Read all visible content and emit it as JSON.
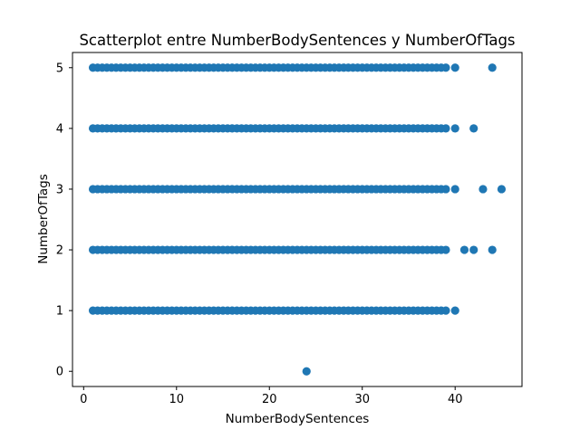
{
  "chart_data": {
    "type": "scatter",
    "title": "Scatterplot entre NumberBodySentences y NumberOfTags",
    "xlabel": "NumberBodySentences",
    "ylabel": "NumberOfTags",
    "xlim": [
      -1.2,
      47.2
    ],
    "ylim": [
      -0.25,
      5.25
    ],
    "xticks": [
      0,
      10,
      20,
      30,
      40
    ],
    "yticks": [
      0,
      1,
      2,
      3,
      4,
      5
    ],
    "grid": false,
    "marker_color": "#1f77b4",
    "rows": [
      {
        "y": 5,
        "x": [
          1,
          1.5,
          2,
          2.5,
          3,
          3.5,
          4,
          4.5,
          5,
          5.5,
          6,
          6.5,
          7,
          7.5,
          8,
          8.5,
          9,
          9.5,
          10,
          10.5,
          11,
          11.5,
          12,
          12.5,
          13,
          13.5,
          14,
          14.5,
          15,
          15.5,
          16,
          16.5,
          17,
          17.5,
          18,
          18.5,
          19,
          19.5,
          20,
          20.5,
          21,
          21.5,
          22,
          22.5,
          23,
          23.5,
          24,
          24.5,
          25,
          25.5,
          26,
          26.5,
          27,
          27.5,
          28,
          28.5,
          29,
          29.5,
          30,
          30.5,
          31,
          31.5,
          32,
          32.5,
          33,
          33.5,
          34,
          34.5,
          35,
          35.5,
          36,
          36.5,
          37,
          37.5,
          38,
          38.5,
          39,
          40,
          44
        ]
      },
      {
        "y": 4,
        "x": [
          1,
          1.5,
          2,
          2.5,
          3,
          3.5,
          4,
          4.5,
          5,
          5.5,
          6,
          6.5,
          7,
          7.5,
          8,
          8.5,
          9,
          9.5,
          10,
          10.5,
          11,
          11.5,
          12,
          12.5,
          13,
          13.5,
          14,
          14.5,
          15,
          15.5,
          16,
          16.5,
          17,
          17.5,
          18,
          18.5,
          19,
          19.5,
          20,
          20.5,
          21,
          21.5,
          22,
          22.5,
          23,
          23.5,
          24,
          24.5,
          25,
          25.5,
          26,
          26.5,
          27,
          27.5,
          28,
          28.5,
          29,
          29.5,
          30,
          30.5,
          31,
          31.5,
          32,
          32.5,
          33,
          33.5,
          34,
          34.5,
          35,
          35.5,
          36,
          36.5,
          37,
          37.5,
          38,
          38.5,
          39,
          40,
          42
        ]
      },
      {
        "y": 3,
        "x": [
          1,
          1.5,
          2,
          2.5,
          3,
          3.5,
          4,
          4.5,
          5,
          5.5,
          6,
          6.5,
          7,
          7.5,
          8,
          8.5,
          9,
          9.5,
          10,
          10.5,
          11,
          11.5,
          12,
          12.5,
          13,
          13.5,
          14,
          14.5,
          15,
          15.5,
          16,
          16.5,
          17,
          17.5,
          18,
          18.5,
          19,
          19.5,
          20,
          20.5,
          21,
          21.5,
          22,
          22.5,
          23,
          23.5,
          24,
          24.5,
          25,
          25.5,
          26,
          26.5,
          27,
          27.5,
          28,
          28.5,
          29,
          29.5,
          30,
          30.5,
          31,
          31.5,
          32,
          32.5,
          33,
          33.5,
          34,
          34.5,
          35,
          35.5,
          36,
          36.5,
          37,
          37.5,
          38,
          38.5,
          39,
          40,
          43,
          45
        ]
      },
      {
        "y": 2,
        "x": [
          1,
          1.5,
          2,
          2.5,
          3,
          3.5,
          4,
          4.5,
          5,
          5.5,
          6,
          6.5,
          7,
          7.5,
          8,
          8.5,
          9,
          9.5,
          10,
          10.5,
          11,
          11.5,
          12,
          12.5,
          13,
          13.5,
          14,
          14.5,
          15,
          15.5,
          16,
          16.5,
          17,
          17.5,
          18,
          18.5,
          19,
          19.5,
          20,
          20.5,
          21,
          21.5,
          22,
          22.5,
          23,
          23.5,
          24,
          24.5,
          25,
          25.5,
          26,
          26.5,
          27,
          27.5,
          28,
          28.5,
          29,
          29.5,
          30,
          30.5,
          31,
          31.5,
          32,
          32.5,
          33,
          33.5,
          34,
          34.5,
          35,
          35.5,
          36,
          36.5,
          37,
          37.5,
          38,
          38.5,
          39,
          41,
          42,
          44
        ]
      },
      {
        "y": 1,
        "x": [
          1,
          1.5,
          2,
          2.5,
          3,
          3.5,
          4,
          4.5,
          5,
          5.5,
          6,
          6.5,
          7,
          7.5,
          8,
          8.5,
          9,
          9.5,
          10,
          10.5,
          11,
          11.5,
          12,
          12.5,
          13,
          13.5,
          14,
          14.5,
          15,
          15.5,
          16,
          16.5,
          17,
          17.5,
          18,
          18.5,
          19,
          19.5,
          20,
          20.5,
          21,
          21.5,
          22,
          22.5,
          23,
          23.5,
          24,
          24.5,
          25,
          25.5,
          26,
          26.5,
          27,
          27.5,
          28,
          28.5,
          29,
          29.5,
          30,
          30.5,
          31,
          31.5,
          32,
          32.5,
          33,
          33.5,
          34,
          34.5,
          35,
          35.5,
          36,
          36.5,
          37,
          37.5,
          38,
          38.5,
          39,
          40
        ]
      },
      {
        "y": 0,
        "x": [
          24
        ]
      }
    ]
  }
}
